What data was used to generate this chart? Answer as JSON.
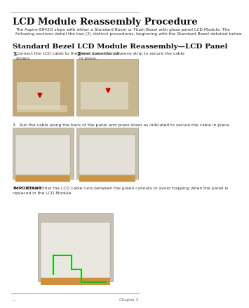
{
  "page_bg": "#ffffff",
  "title": "LCD Module Reassembly Procedure",
  "subtitle": "The Aspire 8942G ships with either a Standard Bezel or Flush Bezel with glass panel LCD Module. The\nfollowing sections detail the two (2) distinct procedures, beginning with the Standard Bezel detailed below.",
  "section_title": "Standard Bezel LCD Module Reassembly—LCD Panel",
  "step1_label": "1.",
  "step1_text": "Connect the LCD cable to the panel connector as\nshown.",
  "step2_label": "2.",
  "step2_text": "Press down the adhesive strip to secure the cable\nin place.",
  "step3_text": "3.  Run the cable along the back of the panel and press down as indicated to secure the cable in place.",
  "important_bold": "IMPORTANT:",
  "important_text": " Ensure that the LCD cable runs between the green callouts to avoid trapping when the panel is\nreplaced in the LCD Module.",
  "footer_left": "...",
  "footer_right": "Chapter 3",
  "top_line_color": "#999999",
  "bottom_line_color": "#999999",
  "arrow1_color": "#cc0000",
  "arrow2_color": "#cc0000",
  "green_line_color": "#00cc00",
  "photo_border": "#888888"
}
